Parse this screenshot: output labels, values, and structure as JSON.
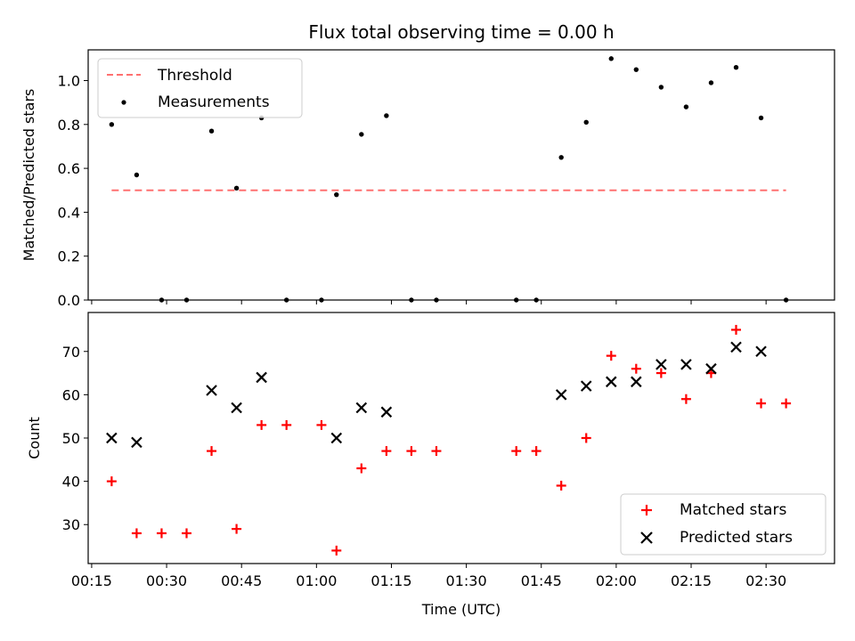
{
  "chart_data": [
    {
      "type": "scatter",
      "title": "Flux total observing time = 0.00 h",
      "xlabel": "",
      "ylabel": "Matched/Predicted stars",
      "ylim": [
        0,
        1.14
      ],
      "yticks": [
        "0.0",
        "0.2",
        "0.4",
        "0.6",
        "0.8",
        "1.0"
      ],
      "ytick_values": [
        0,
        0.2,
        0.4,
        0.6,
        0.8,
        1.0
      ],
      "legend_position": "top-left",
      "series": [
        {
          "name": "Threshold",
          "kind": "dashed-line",
          "color": "#ff7070",
          "x": [
            "00:19",
            "02:34"
          ],
          "y": [
            0.5,
            0.5
          ]
        },
        {
          "name": "Measurements",
          "kind": "point",
          "color": "#000000",
          "x": [
            "00:19",
            "00:24",
            "00:29",
            "00:34",
            "00:39",
            "00:44",
            "00:49",
            "00:54",
            "01:01",
            "01:04",
            "01:09",
            "01:14",
            "01:19",
            "01:24",
            "01:40",
            "01:44",
            "01:49",
            "01:54",
            "01:59",
            "02:04",
            "02:09",
            "02:14",
            "02:19",
            "02:24",
            "02:29",
            "02:34"
          ],
          "y": [
            0.8,
            0.57,
            0.0,
            0.0,
            0.77,
            0.51,
            0.83,
            0.0,
            0.0,
            0.48,
            0.755,
            0.84,
            0.0,
            0.0,
            0.0,
            0.0,
            0.65,
            0.81,
            1.1,
            1.05,
            0.97,
            0.88,
            0.99,
            1.06,
            0.83,
            0.0
          ]
        }
      ]
    },
    {
      "type": "scatter",
      "title": "",
      "xlabel": "Time (UTC)",
      "ylabel": "Count",
      "ylim": [
        21,
        79
      ],
      "yticks": [
        "30",
        "40",
        "50",
        "60",
        "70"
      ],
      "ytick_values": [
        30,
        40,
        50,
        60,
        70
      ],
      "xticks": [
        "00:15",
        "00:30",
        "00:45",
        "01:00",
        "01:15",
        "01:30",
        "01:45",
        "02:00",
        "02:15",
        "02:30"
      ],
      "legend_position": "bottom-right",
      "series": [
        {
          "name": "Matched stars",
          "kind": "plus",
          "color": "#ff0000",
          "x": [
            "00:19",
            "00:24",
            "00:29",
            "00:34",
            "00:39",
            "00:44",
            "00:49",
            "00:54",
            "01:01",
            "01:04",
            "01:09",
            "01:14",
            "01:19",
            "01:24",
            "01:40",
            "01:44",
            "01:49",
            "01:54",
            "01:59",
            "02:04",
            "02:09",
            "02:14",
            "02:19",
            "02:24",
            "02:29",
            "02:34"
          ],
          "y": [
            40,
            28,
            28,
            28,
            47,
            29,
            53,
            53,
            53,
            24,
            43,
            47,
            47,
            47,
            47,
            47,
            39,
            50,
            69,
            66,
            65,
            59,
            65,
            75,
            58,
            58
          ]
        },
        {
          "name": "Predicted stars",
          "kind": "cross",
          "color": "#000000",
          "x": [
            "00:19",
            "00:24",
            "00:39",
            "00:44",
            "00:49",
            "01:04",
            "01:09",
            "01:14",
            "01:49",
            "01:54",
            "01:59",
            "02:04",
            "02:09",
            "02:14",
            "02:19",
            "02:24",
            "02:29"
          ],
          "y": [
            50,
            49,
            61,
            57,
            64,
            50,
            57,
            56,
            60,
            62,
            63,
            63,
            67,
            67,
            66,
            71,
            70
          ]
        }
      ]
    }
  ],
  "x_axis": {
    "min_minutes": 14.3,
    "max_minutes": 163.7
  }
}
